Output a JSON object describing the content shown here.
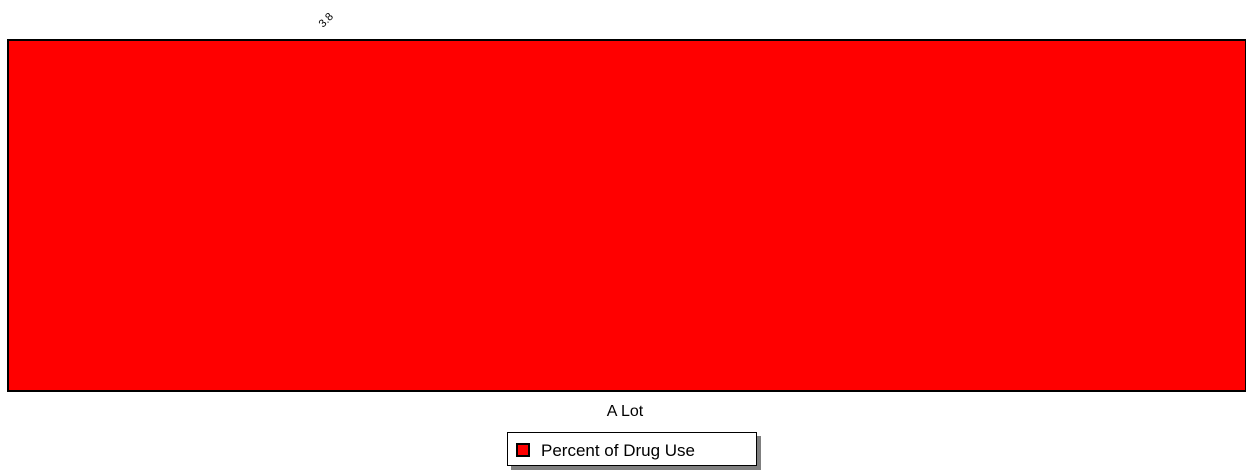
{
  "chart_data": {
    "type": "bar",
    "categories": [
      "A Lot"
    ],
    "series": [
      {
        "name": "Percent of Drug Use",
        "values": [
          3.8
        ],
        "color": "#ff0000"
      }
    ],
    "data_labels": [
      "3.8"
    ],
    "ylim": [
      0,
      3.8
    ],
    "grid": false,
    "legend_position": "bottom-center"
  }
}
